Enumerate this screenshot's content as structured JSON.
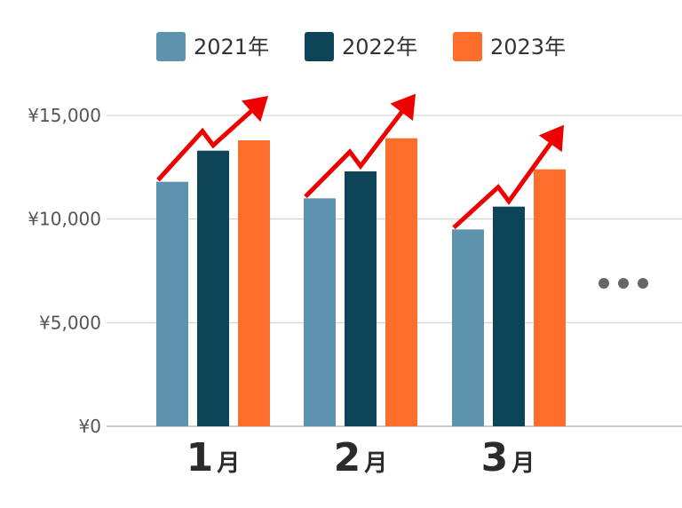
{
  "chart_data": {
    "type": "bar",
    "categories": [
      {
        "number": "1",
        "suffix": "月"
      },
      {
        "number": "2",
        "suffix": "月"
      },
      {
        "number": "3",
        "suffix": "月"
      }
    ],
    "series": [
      {
        "name": "2021年",
        "color": "#5e93ad",
        "values": [
          11800,
          11000,
          9500
        ]
      },
      {
        "name": "2022年",
        "color": "#0d4457",
        "values": [
          13300,
          12300,
          10600
        ]
      },
      {
        "name": "2023年",
        "color": "#fd6e2d",
        "values": [
          13800,
          13900,
          12400
        ]
      }
    ],
    "yticks": [
      {
        "value": 0,
        "label": "¥0"
      },
      {
        "value": 5000,
        "label": "¥5,000"
      },
      {
        "value": 10000,
        "label": "¥10,000"
      },
      {
        "value": 15000,
        "label": "¥15,000"
      }
    ],
    "ylim": [
      0,
      15000
    ],
    "grid": true,
    "legend_position": "top-center",
    "annotation": {
      "type": "upward-trend-arrow",
      "color": "#ee0000"
    },
    "continuation_marker": {
      "type": "ellipsis-dots",
      "color": "#666666"
    },
    "title": "",
    "xlabel": "",
    "ylabel": ""
  }
}
